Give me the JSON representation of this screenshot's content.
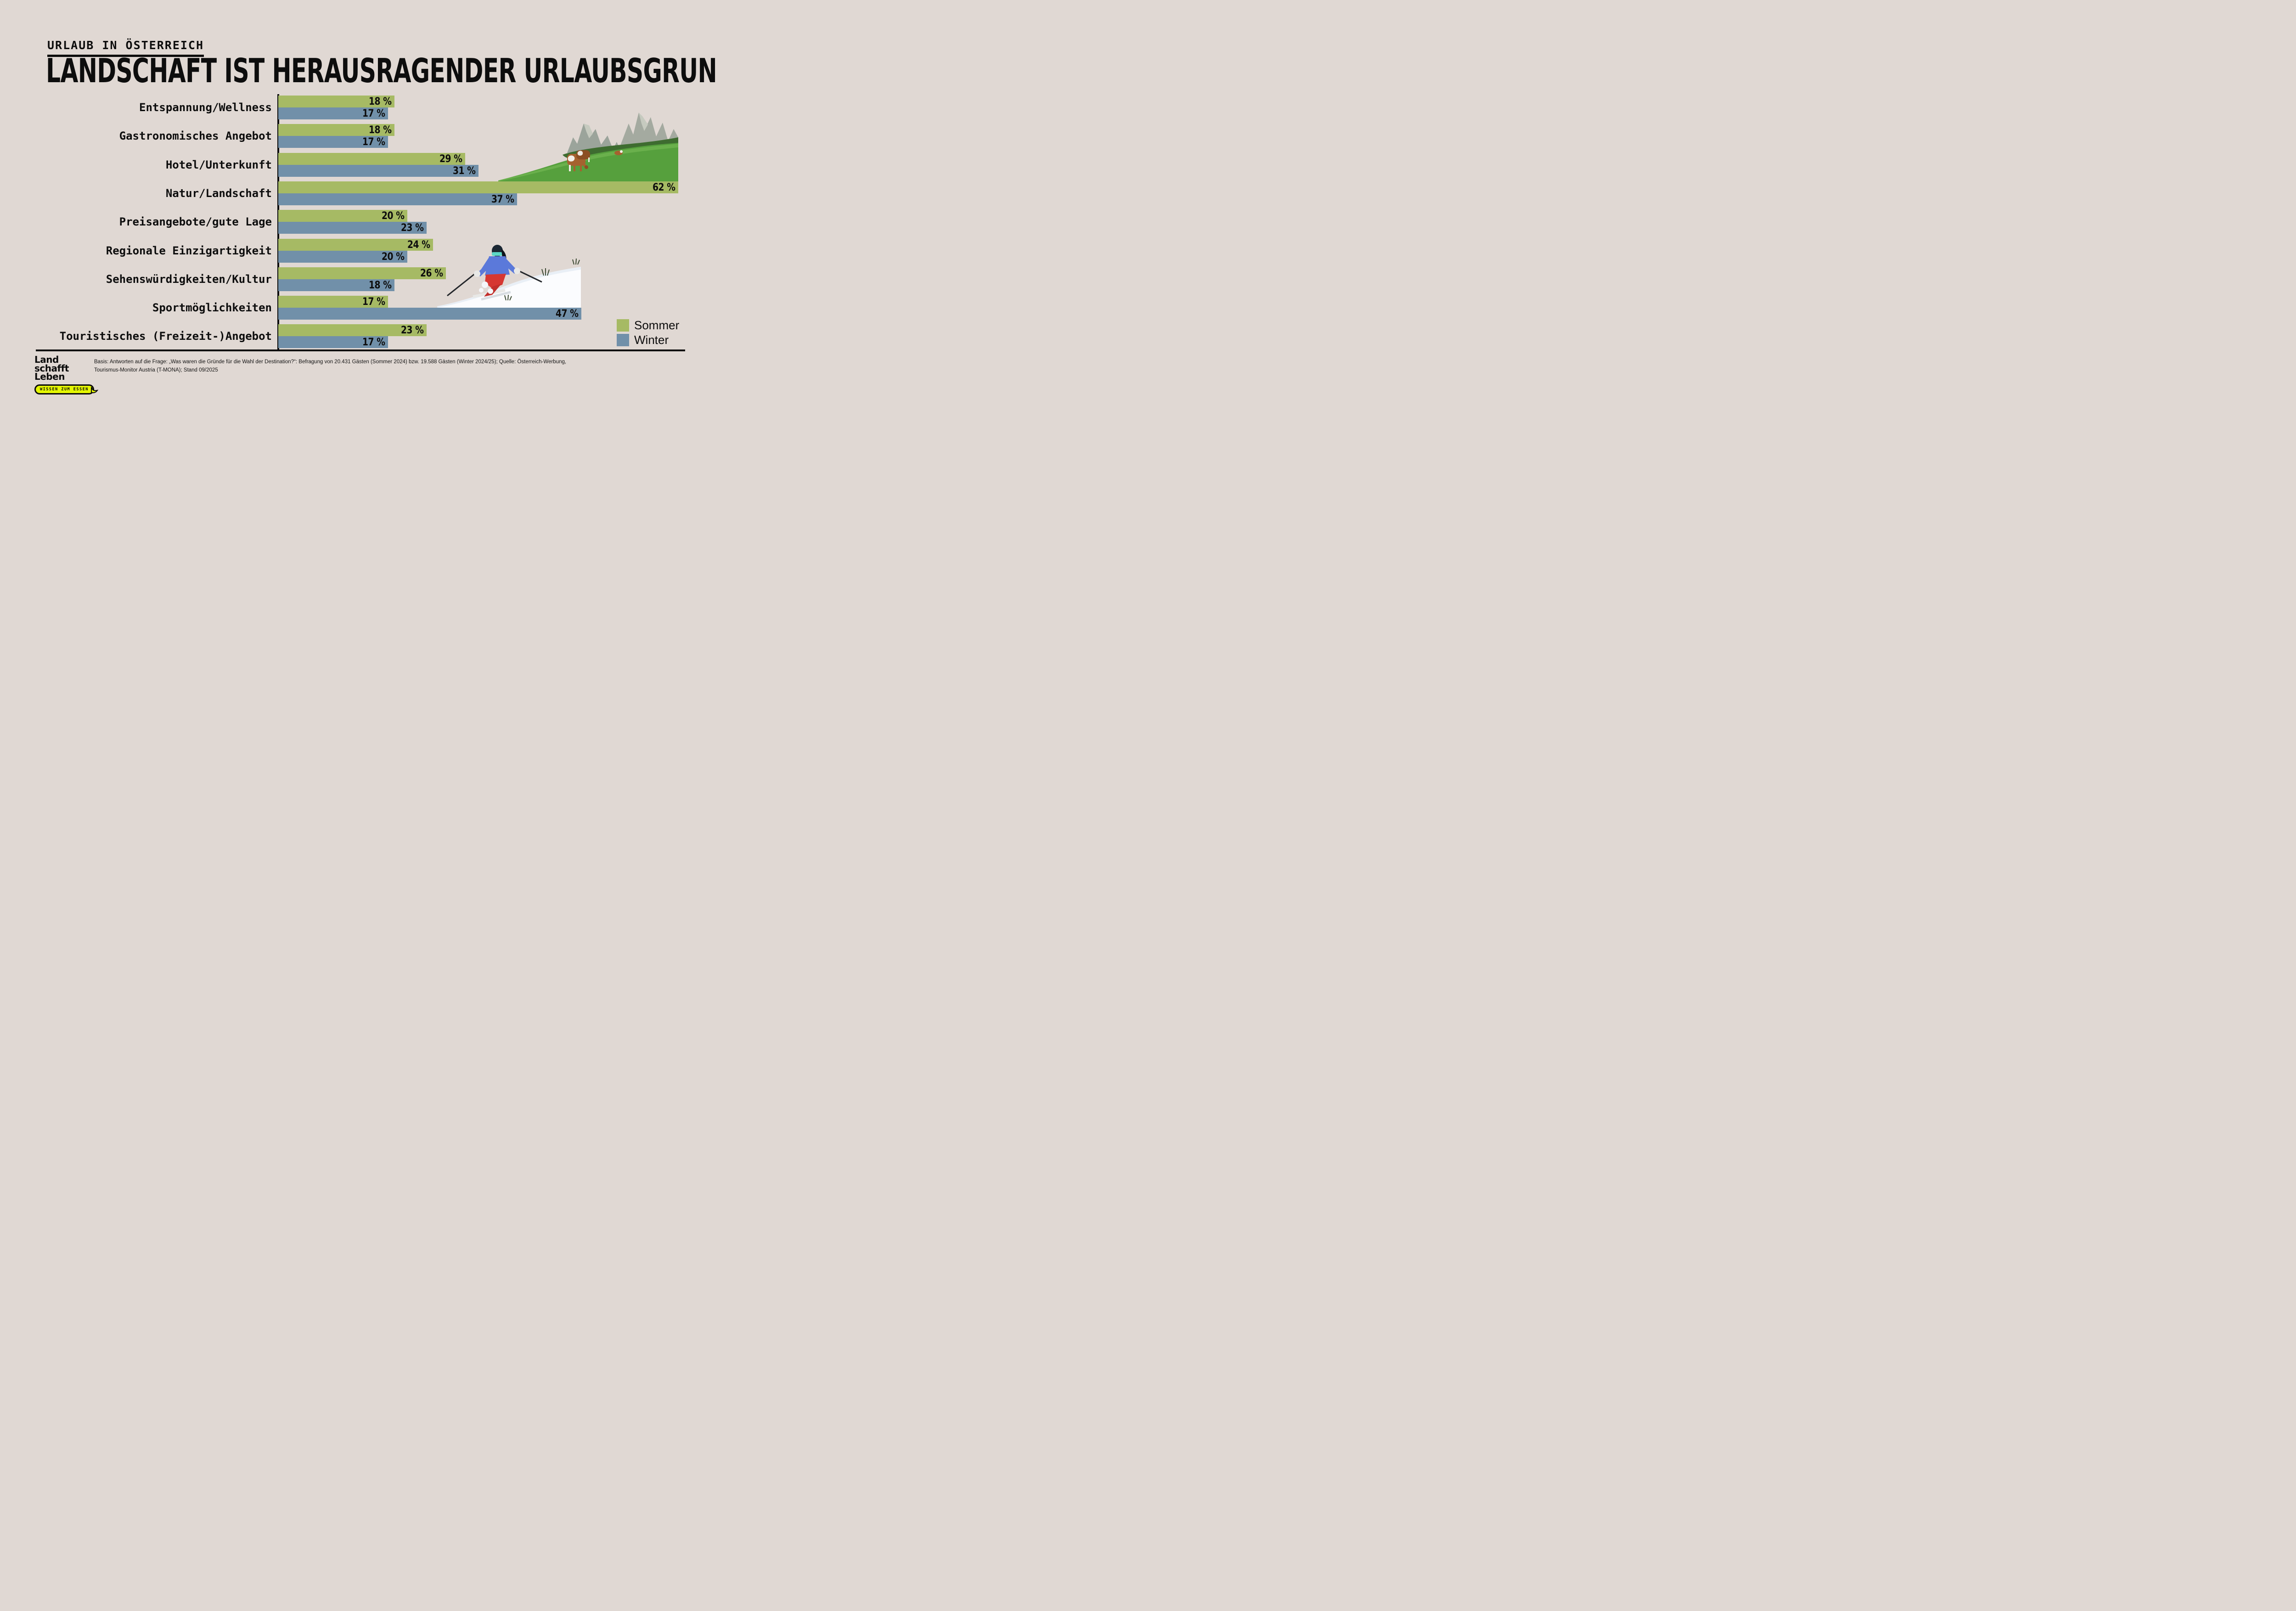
{
  "page": {
    "background": "#e0d8d3"
  },
  "header": {
    "eyebrow": "URLAUB IN ÖSTERREICH",
    "title": "LANDSCHAFT IST HERAUSRAGENDER URLAUBSGRUND"
  },
  "chart_data": {
    "type": "bar",
    "orientation": "horizontal",
    "title": "Landschaft ist herausragender Urlaubsgrund",
    "unit": "%",
    "value_suffix": " %",
    "xlim": [
      0,
      62
    ],
    "grid": false,
    "legend_position": "bottom-right",
    "categories": [
      "Entspannung/Wellness",
      "Gastronomisches Angebot",
      "Hotel/Unterkunft",
      "Natur/Landschaft",
      "Preisangebote/gute Lage",
      "Regionale Einzigartigkeit",
      "Sehenswürdigkeiten/Kultur",
      "Sportmöglichkeiten",
      "Touristisches (Freizeit-)Angebot"
    ],
    "series": [
      {
        "name": "Sommer",
        "color": "#a6ba64",
        "values": [
          18,
          18,
          29,
          62,
          20,
          24,
          26,
          17,
          23
        ]
      },
      {
        "name": "Winter",
        "color": "#7190a9",
        "values": [
          17,
          17,
          31,
          37,
          23,
          20,
          18,
          47,
          17
        ]
      }
    ]
  },
  "photos": {
    "mountain": "Almwiese mit Kühen vor Bergmassiv",
    "skier": "Skifahrer im Schnee"
  },
  "footer": {
    "line1": "Basis: Antworten auf die Frage: „Was waren die Gründe für die Wahl der Destination?“: Befragung von 20.431 Gästen (Sommer 2024) bzw. 19.588 Gästen (Winter 2024/25); Quelle: Österreich-Werbung,",
    "line2": "Tourismus-Monitor Austria (T-MONA); Stand 09/2025"
  },
  "logo": {
    "line1": "Land",
    "line2": "schafft",
    "line3": "Leben",
    "badge": "WISSEN ZUM ESSEN"
  }
}
